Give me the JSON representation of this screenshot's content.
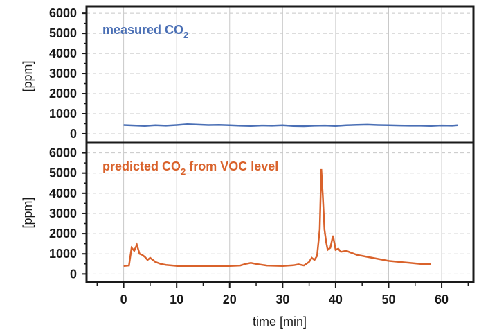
{
  "chart_data": [
    {
      "type": "line",
      "ylabel": "[ppm]",
      "ylim": [
        -450,
        6350
      ],
      "yticks": [
        0,
        1000,
        2000,
        3000,
        4000,
        5000,
        6000
      ],
      "xlim": [
        -7,
        66
      ],
      "xticks": [
        0,
        10,
        20,
        30,
        40,
        50,
        60
      ],
      "grid": true,
      "series": [
        {
          "name": "measured CO2",
          "name_main": "measured CO",
          "name_sub": "2",
          "color": "#4a6fb5",
          "x": [
            0,
            2,
            4,
            6,
            8,
            10,
            12,
            14,
            16,
            18,
            20,
            22,
            24,
            26,
            28,
            30,
            32,
            34,
            36,
            38,
            40,
            42,
            44,
            46,
            48,
            50,
            52,
            54,
            56,
            58,
            60,
            62,
            63
          ],
          "y": [
            430,
            410,
            390,
            420,
            400,
            430,
            470,
            450,
            430,
            440,
            420,
            400,
            390,
            410,
            400,
            420,
            390,
            380,
            400,
            410,
            390,
            420,
            440,
            450,
            430,
            420,
            410,
            400,
            400,
            390,
            410,
            400,
            420
          ]
        }
      ]
    },
    {
      "type": "line",
      "ylabel": "[ppm]",
      "xlabel": "time [min]",
      "ylim": [
        -400,
        6500
      ],
      "yticks": [
        0,
        1000,
        2000,
        3000,
        4000,
        5000,
        6000
      ],
      "xlim": [
        -7,
        66
      ],
      "xticks": [
        0,
        10,
        20,
        30,
        40,
        50,
        60
      ],
      "grid": true,
      "series": [
        {
          "name": "predicted CO2 from VOC level",
          "name_main": "predicted CO",
          "name_sub": "2",
          "name_rest": " from VOC level",
          "color": "#d9622b",
          "x": [
            0,
            1,
            1.5,
            2,
            2.5,
            3,
            3.5,
            4,
            4.5,
            5,
            6,
            7,
            8,
            10,
            15,
            20,
            22,
            23,
            24,
            25,
            27,
            30,
            32,
            33,
            34,
            35,
            35.5,
            36,
            36.5,
            37,
            37.3,
            37.6,
            37.9,
            38.2,
            38.5,
            39,
            39.5,
            40,
            40.5,
            41,
            42,
            43,
            44,
            45,
            46,
            48,
            50,
            52,
            54,
            56,
            58
          ],
          "y": [
            400,
            420,
            1300,
            1150,
            1450,
            1000,
            950,
            850,
            700,
            800,
            600,
            500,
            450,
            400,
            400,
            400,
            420,
            500,
            550,
            500,
            420,
            400,
            430,
            480,
            420,
            600,
            800,
            700,
            900,
            2200,
            5200,
            3800,
            2200,
            1600,
            1200,
            1300,
            1900,
            1200,
            1250,
            1100,
            1150,
            1050,
            950,
            900,
            850,
            750,
            650,
            600,
            550,
            500,
            500
          ]
        }
      ]
    }
  ],
  "shared_xlabel": "time [min]"
}
